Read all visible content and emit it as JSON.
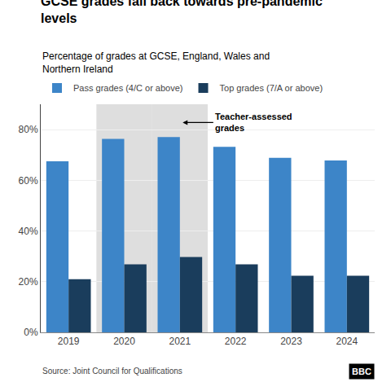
{
  "chart_data": {
    "type": "bar",
    "title": "GCSE grades fall back towards pre-pandemic\nlevels",
    "subtitle": "Percentage of grades at GCSE, England, Wales and\nNorthern Ireland",
    "source": "Source: Joint Council for Qualifications",
    "logo": "BBC",
    "annotation": "Teacher-assessed\ngrades",
    "categories": [
      "2019",
      "2020",
      "2021",
      "2022",
      "2023",
      "2024"
    ],
    "series": [
      {
        "name": "Pass grades (4/C or above)",
        "color": "#3d85c8",
        "values": [
          67.5,
          76.3,
          77.1,
          73.2,
          68.9,
          67.8
        ]
      },
      {
        "name": "Top grades (7/A or above)",
        "color": "#1a3d5c",
        "values": [
          21.0,
          26.8,
          29.7,
          26.8,
          22.3,
          22.3
        ]
      }
    ],
    "shaded": {
      "categories": [
        "2020",
        "2021"
      ],
      "color": "#c8c8c8"
    },
    "ylim": [
      0,
      90
    ],
    "yticks": [
      {
        "value": 0,
        "label": "0%"
      },
      {
        "value": 20,
        "label": "20%"
      },
      {
        "value": 40,
        "label": "40%"
      },
      {
        "value": 60,
        "label": "60%"
      },
      {
        "value": 80,
        "label": "80%"
      }
    ],
    "grid": true,
    "legend": "top left"
  }
}
